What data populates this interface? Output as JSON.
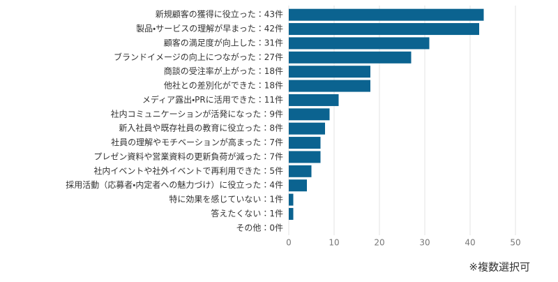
{
  "chart_data": {
    "type": "bar",
    "orientation": "horizontal",
    "categories": [
      "新規顧客の獲得に役立った：43件",
      "製品・サービスの理解が早まった：42件",
      "顧客の満足度が向上した：31件",
      "ブランドイメージの向上につながった：27件",
      "商談の受注率が上がった：18件",
      "他社との差別化ができた：18件",
      "メディア露出・PRに活用できた：11件",
      "社内コミュニケーションが活発になった：9件",
      "新入社員や既存社員の教育に役立った：8件",
      "社員の理解やモチベーションが高まった：7件",
      "プレゼン資料や営業資料の更新負荷が減った：7件",
      "社内イベントや社外イベントで再利用できた：5件",
      "採用活動（応募者・内定者への魅力づけ）に役立った：4件",
      "特に効果を感じていない：1件",
      "答えたくない：1件",
      "その他：0件"
    ],
    "values": [
      43,
      42,
      31,
      27,
      18,
      18,
      11,
      9,
      8,
      7,
      7,
      5,
      4,
      1,
      1,
      0
    ],
    "color": "#0b6390",
    "xlim": [
      0,
      50
    ],
    "xticks": [
      0,
      10,
      20,
      30,
      40,
      50
    ],
    "grid": true,
    "note": "※複数選択可"
  }
}
